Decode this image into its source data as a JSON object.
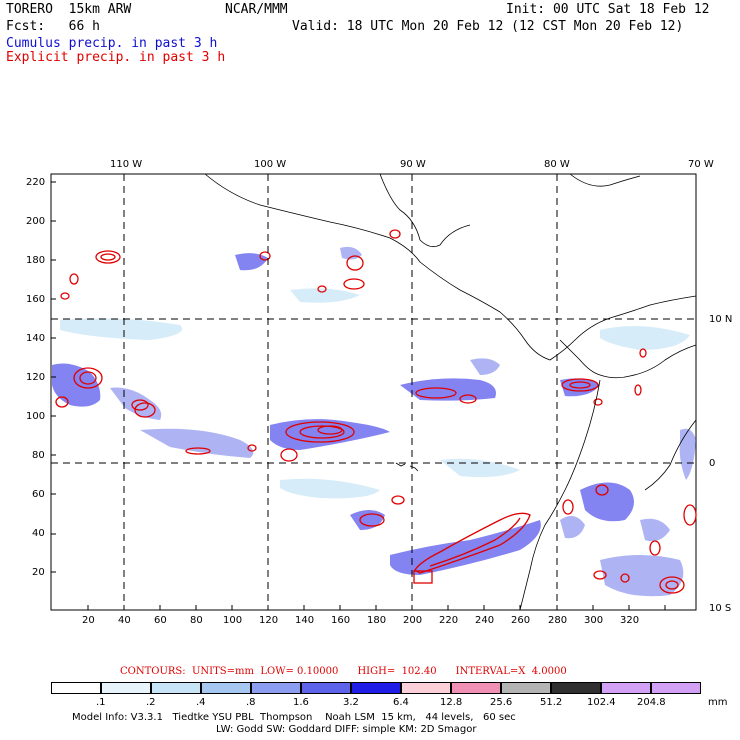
{
  "header": {
    "model": "TORERO  15km ARW",
    "org": "NCAR/MMM",
    "init": "Init: 00 UTC Sat 18 Feb 12",
    "fcst": "Fcst:   66 h",
    "valid": "Valid: 18 UTC Mon 20 Feb 12 (12 CST Mon 20 Feb 12)",
    "legend_cumulus": "Cumulus precip. in past 3 h",
    "legend_explicit": "Explicit precip. in past 3 h"
  },
  "map": {
    "lon_labels": [
      "110 W",
      "100 W",
      "90 W",
      "80 W",
      "70 W"
    ],
    "lat_labels": [
      "10 N",
      "0",
      "10 S"
    ],
    "x_ticks": [
      "20",
      "40",
      "60",
      "80",
      "100",
      "120",
      "140",
      "160",
      "180",
      "200",
      "220",
      "240",
      "260",
      "280",
      "300",
      "320"
    ],
    "y_ticks": [
      "20",
      "40",
      "60",
      "80",
      "100",
      "120",
      "140",
      "160",
      "180",
      "200",
      "220"
    ]
  },
  "contours": {
    "label": "CONTOURS:  UNITS=mm  LOW= 0.10000      HIGH=  102.40      INTERVAL=X  4.0000"
  },
  "colorbar": {
    "labels": [
      ".1",
      ".2",
      ".4",
      ".8",
      "1.6",
      "3.2",
      "6.4",
      "12.8",
      "25.6",
      "51.2",
      "102.4",
      "204.8"
    ],
    "unit": "mm",
    "colors": [
      "#ffffff",
      "#e8f4fc",
      "#c6e4f6",
      "#a6c8f0",
      "#8c9ef0",
      "#5d64ea",
      "#1e1ee6",
      "#fcd0d8",
      "#f090b4",
      "#b4b4b4",
      "#303030",
      "#d2a0f4"
    ]
  },
  "footer": {
    "line1": "Model Info: V3.3.1   Tiedtke YSU PBL  Thompson    Noah LSM  15 km,   44 levels,   60 sec",
    "line2": "LW: Godd SW: Goddard DIFF: simple KM: 2D Smagor"
  }
}
